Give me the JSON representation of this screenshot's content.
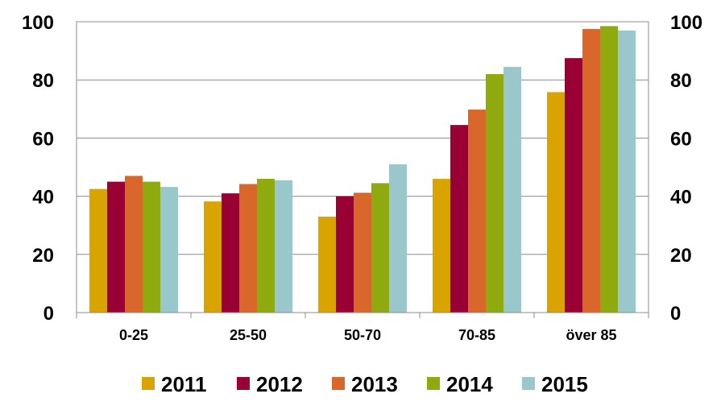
{
  "chart_data": {
    "type": "bar",
    "categories": [
      "0-25",
      "25-50",
      "50-70",
      "70-85",
      "över 85"
    ],
    "series": [
      {
        "name": "2011",
        "color": "#D9A400",
        "values": [
          42.5,
          38.2,
          33.0,
          46.0,
          75.8
        ]
      },
      {
        "name": "2012",
        "color": "#990033",
        "values": [
          45.0,
          41.0,
          40.0,
          64.5,
          87.5
        ]
      },
      {
        "name": "2013",
        "color": "#D9662B",
        "values": [
          47.0,
          44.2,
          41.2,
          69.8,
          97.5
        ]
      },
      {
        "name": "2014",
        "color": "#8EAA0E",
        "values": [
          45.0,
          46.0,
          44.5,
          82.0,
          98.5
        ]
      },
      {
        "name": "2015",
        "color": "#99C7CC",
        "values": [
          43.2,
          45.5,
          51.0,
          84.5,
          97.0
        ]
      }
    ],
    "ylim": [
      0,
      100
    ],
    "y_ticks": [
      "0",
      "20",
      "40",
      "60",
      "80",
      "100"
    ],
    "y_tick_values": [
      0,
      20,
      40,
      60,
      80,
      100
    ],
    "grid": true,
    "legend_position": "bottom",
    "secondary_y_axis": true
  }
}
